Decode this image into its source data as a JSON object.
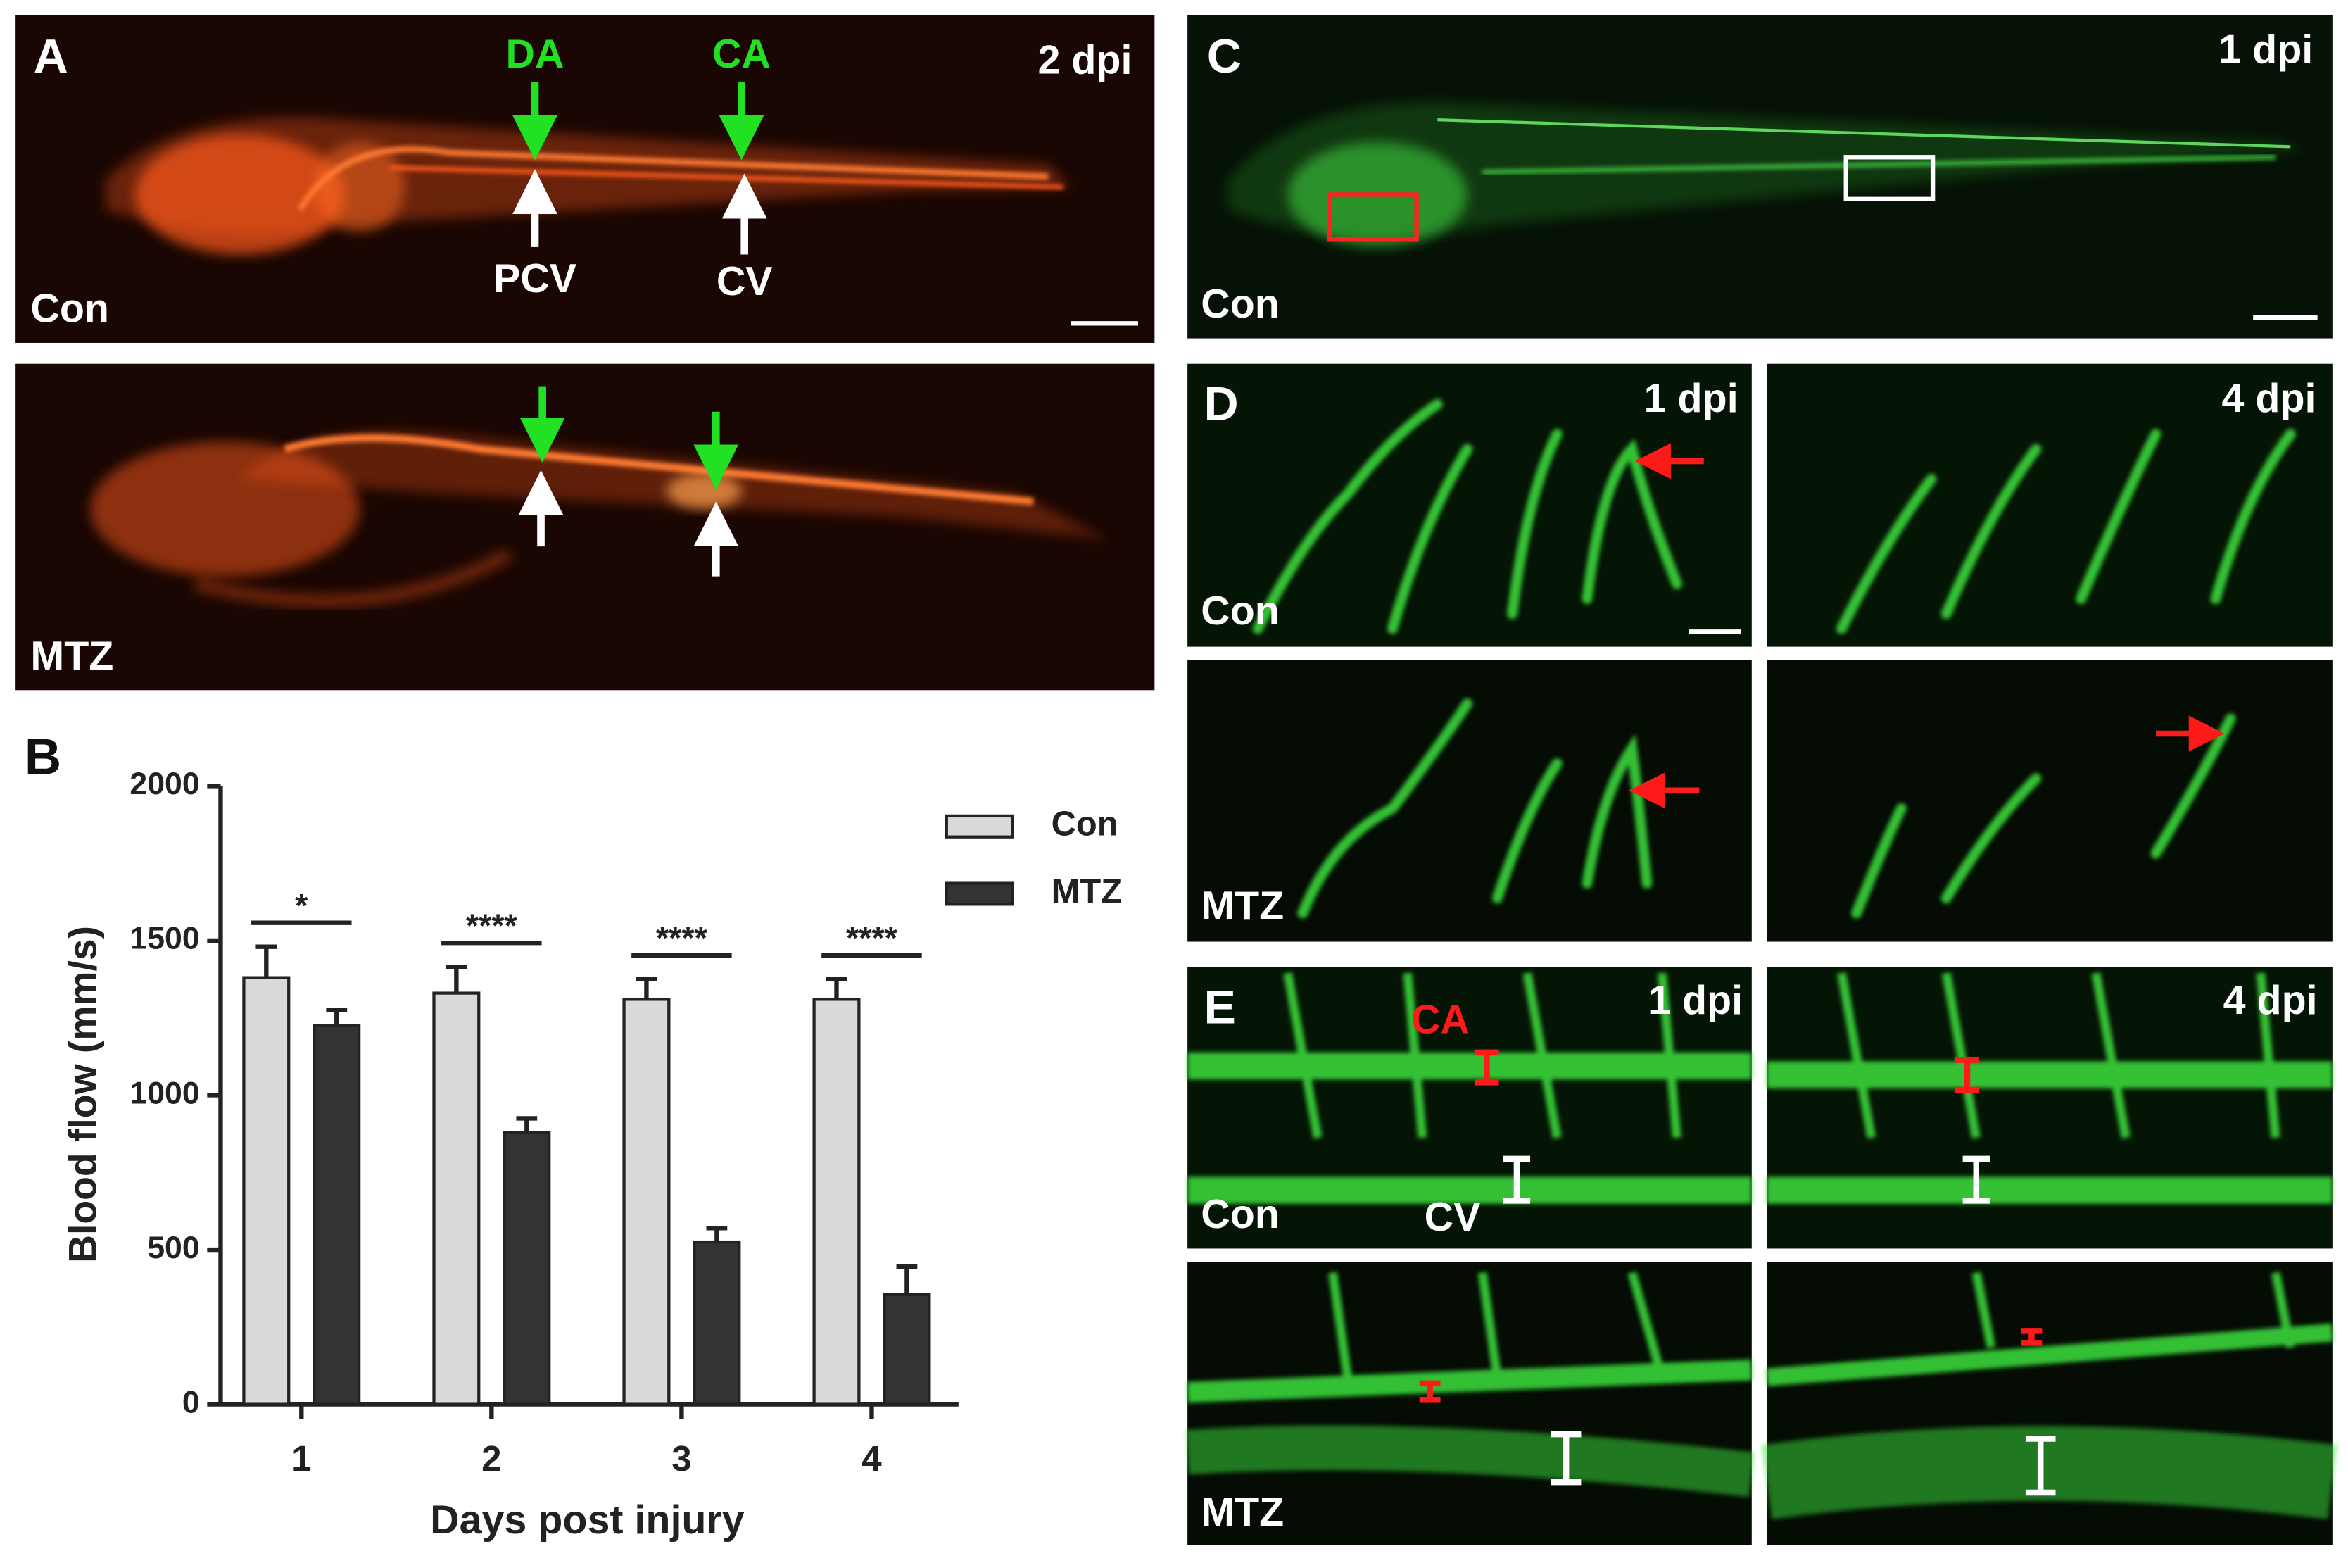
{
  "panels": {
    "A": {
      "label": "A",
      "timepoint": "2 dpi",
      "top_condition": "Con",
      "bottom_condition": "MTZ",
      "vessels": [
        "DA",
        "CA",
        "PCV",
        "CV"
      ]
    },
    "B": {
      "label": "B"
    },
    "C": {
      "label": "C",
      "timepoint": "1 dpi",
      "condition": "Con"
    },
    "D": {
      "label": "D",
      "timepoints": [
        "1 dpi",
        "4 dpi"
      ],
      "conditions": [
        "Con",
        "MTZ"
      ]
    },
    "E": {
      "label": "E",
      "timepoints": [
        "1 dpi",
        "4 dpi"
      ],
      "conditions": [
        "Con",
        "MTZ"
      ],
      "vessels": [
        "CA",
        "CV"
      ]
    }
  },
  "chart_data": {
    "type": "bar",
    "x_label": "Days post injury",
    "y_label": "Blood flow (mm/s)",
    "categories": [
      "1",
      "2",
      "3",
      "4"
    ],
    "series": [
      {
        "name": "Con",
        "color": "#d9d9d9",
        "values": [
          1380,
          1330,
          1310,
          1310
        ],
        "errors": [
          100,
          85,
          65,
          65
        ]
      },
      {
        "name": "MTZ",
        "color": "#333333",
        "values": [
          1225,
          880,
          525,
          355
        ],
        "errors": [
          50,
          45,
          45,
          90
        ]
      }
    ],
    "significance": [
      "*",
      "****",
      "****",
      "****"
    ],
    "ylim": [
      0,
      2000
    ],
    "yticks": [
      0,
      500,
      1000,
      1500,
      2000
    ],
    "legend": "upper right",
    "grid": false
  }
}
